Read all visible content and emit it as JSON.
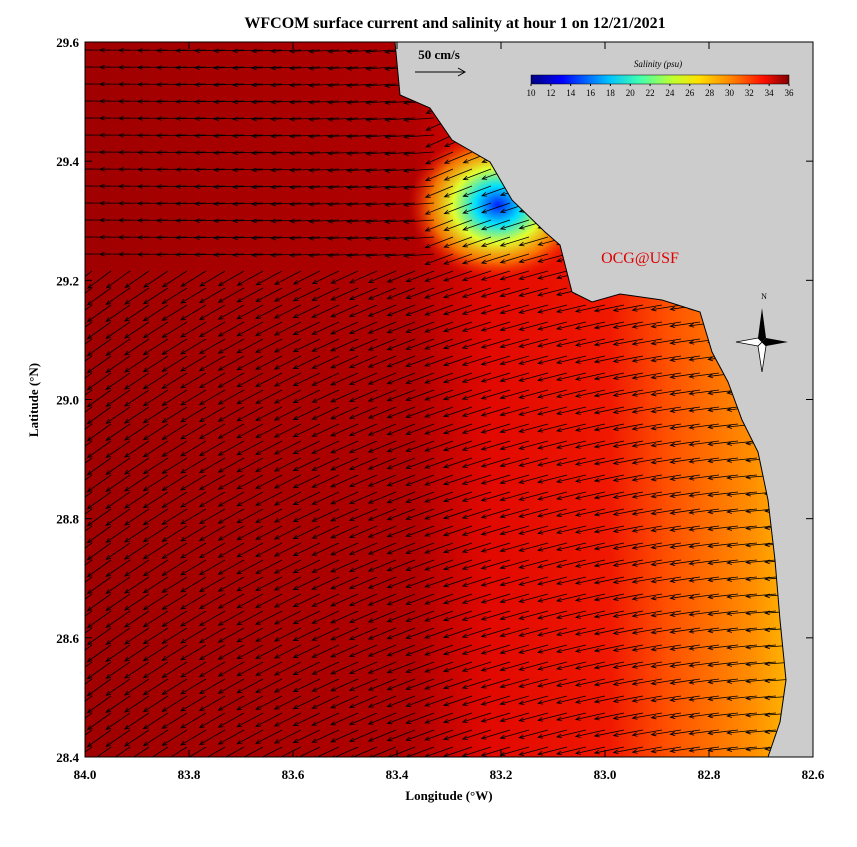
{
  "title": "WFCOM surface current and salinity at hour 1 on 12/21/2021",
  "map": {
    "xlabel": "Longitude (°W)",
    "ylabel": "Latitude (°N)",
    "xlim": [
      84.0,
      82.6
    ],
    "ylim": [
      28.4,
      29.6
    ],
    "xticks": [
      {
        "value": 84.0,
        "label": "84.0"
      },
      {
        "value": 83.8,
        "label": "83.8"
      },
      {
        "value": 83.6,
        "label": "83.6"
      },
      {
        "value": 83.4,
        "label": "83.4"
      },
      {
        "value": 83.2,
        "label": "83.2"
      },
      {
        "value": 83.0,
        "label": "83.0"
      },
      {
        "value": 82.8,
        "label": "82.8"
      },
      {
        "value": 82.6,
        "label": "82.6"
      }
    ],
    "yticks": [
      {
        "value": 28.4,
        "label": "28.4"
      },
      {
        "value": 28.6,
        "label": "28.6"
      },
      {
        "value": 28.8,
        "label": "28.8"
      },
      {
        "value": 29.0,
        "label": "29.0"
      },
      {
        "value": 29.2,
        "label": "29.2"
      },
      {
        "value": 29.4,
        "label": "29.4"
      },
      {
        "value": 29.6,
        "label": "29.6"
      }
    ]
  },
  "scale_label": "50 cm/s",
  "colorbar": {
    "title": "Salinity (psu)",
    "lim": [
      10,
      36
    ],
    "ticks": [
      10,
      12,
      14,
      16,
      18,
      20,
      22,
      24,
      26,
      28,
      30,
      32,
      34,
      36
    ]
  },
  "watermark": "OCG@USF",
  "north_label": "N"
}
